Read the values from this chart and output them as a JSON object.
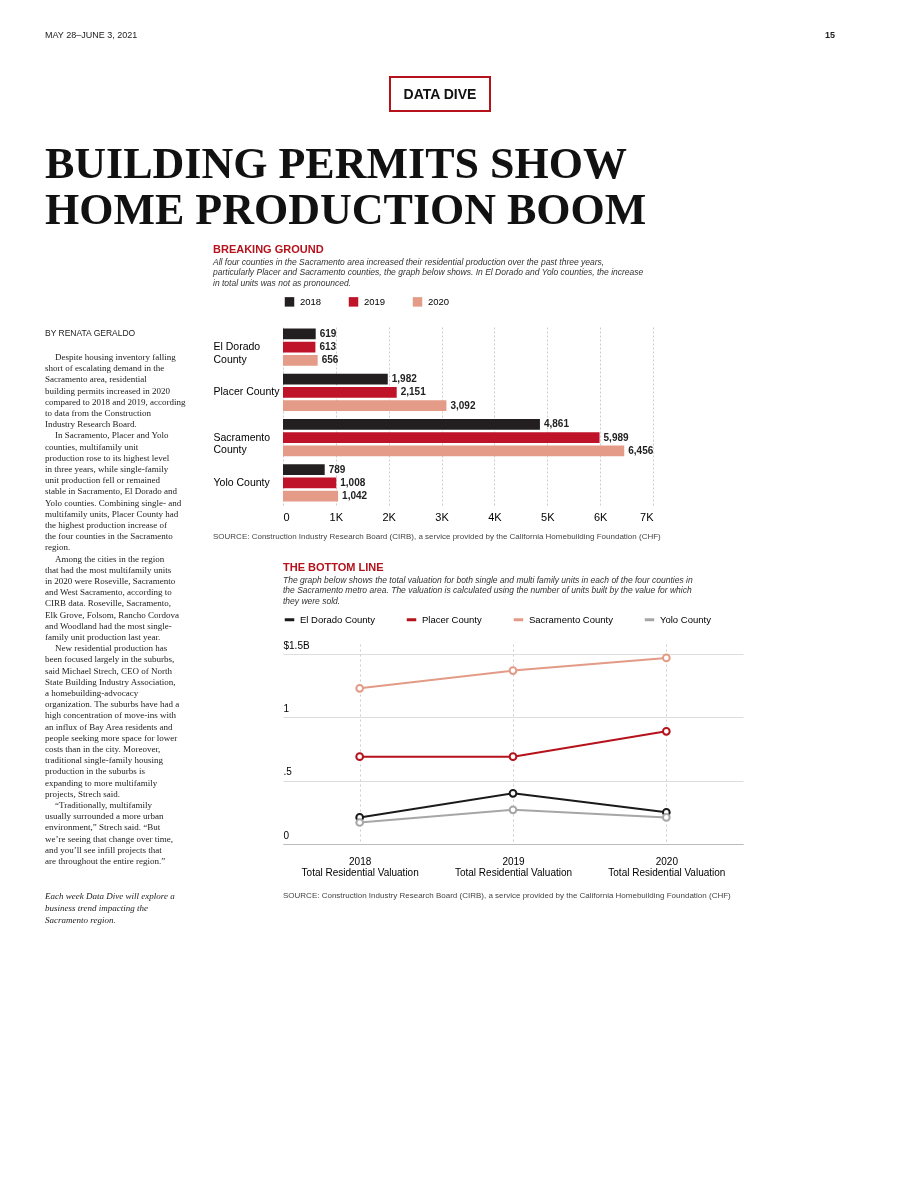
{
  "chart_data": [
    {
      "type": "bar",
      "orientation": "horizontal",
      "title": "BREAKING GROUND",
      "subtitle": "All four counties in the Sacramento area increased their residential production over the past three years, particularly Placer and Sacramento counties, the graph below shows. In El Dorado and Yolo counties, the increase in total units was not as pronounced.",
      "categories": [
        "El Dorado County",
        "Placer County",
        "Sacramento County",
        "Yolo County"
      ],
      "series": [
        {
          "name": "2018",
          "color": "#231f20",
          "values": [
            619,
            1982,
            4861,
            789
          ],
          "value_labels": [
            "619",
            "1,982",
            "4,861",
            "789"
          ]
        },
        {
          "name": "2019",
          "color": "#bf1329",
          "values": [
            613,
            2151,
            5989,
            1008
          ],
          "value_labels": [
            "613",
            "2,151",
            "5,989",
            "1,008"
          ]
        },
        {
          "name": "2020",
          "color": "#e49b88",
          "values": [
            656,
            3092,
            6456,
            1042
          ],
          "value_labels": [
            "656",
            "3,092",
            "6,456",
            "1,042"
          ]
        }
      ],
      "xlim": [
        0,
        7000
      ],
      "xticks": [
        0,
        {
          "value": 1000,
          "label": "1K"
        },
        {
          "value": 2000,
          "label": "2K"
        },
        {
          "value": 3000,
          "label": "3K"
        },
        {
          "value": 4000,
          "label": "4K"
        },
        {
          "value": 5000,
          "label": "5K"
        },
        {
          "value": 6000,
          "label": "6K"
        },
        {
          "value": 7000,
          "label": "7K"
        }
      ],
      "grid": "x",
      "legend": "top left",
      "annotations": [
        "MAY 28–JUNE 3, 2021",
        "15",
        "DATA DIVE",
        "BUILDING PERMITS SHOW HOME PRODUCTION BOOM",
        "BY RENATA GERALDO",
        "Despite housing inventory falling short of escalating demand in the Sacramento area, residential building permits increased in 2020 compared to 2018 and 2019, according to data from the Construction Industry Research Board.",
        "In Sacramento, Placer and Yolo counties, multifamily unit production rose to its highest level in three years, while single-family unit production fell or remained stable in Sacramento, El Dorado and Yolo counties. Combining single- and multifamily units, Placer County had the highest production increase of the four counties in the Sacramento region.",
        "Among the cities in the region that had the most multifamily units in 2020 were Roseville, Sacramento and West Sacramento, according to CIRB data. Roseville, Sacramento, Elk Grove, Folsom, Rancho Cordova and Woodland had the most single-family unit production last year.",
        "New residential production has been focused largely in the suburbs, said Michael Strech, CEO of North State Building Industry Association, a homebuilding-advocacy organization. The suburbs have had a high concentration of move-ins with an influx of Bay Area residents and people seeking more space for lower costs than in the city. Moreover, traditional single-family housing production in the suburbs is expanding to more multifamily projects, Strech said.",
        "“Traditionally, multifamily usually surrounded a more urban environment,” Strech said. “But we’re seeing that change over time, and you’ll see infill projects that are throughout the entire region.”",
        "Each week Data Dive will explore a business trend impacting the Sacramento region.",
        "SOURCE: Construction Industry Research Board (CIRB), a service provided by the California Homebuilding Foundation (CHF)"
      ]
    },
    {
      "type": "line",
      "title": "THE BOTTOM LINE",
      "subtitle": "The graph below shows the total valuation for both single and multi family units in each of the four counties in the Sacramento metro area. The valuation is calculated using the number of units built by the value for which they were sold.",
      "categories": [
        "2018 Total Residential Valuation",
        "2019 Total Residential Valuation",
        "2020 Total Residential Valuation"
      ],
      "series": [
        {
          "name": "El Dorado County",
          "color": "#1a1a1a",
          "values": [
            0.21,
            0.4,
            0.25
          ]
        },
        {
          "name": "Placer County",
          "color": "#b5121b",
          "values": [
            0.69,
            0.69,
            0.89
          ]
        },
        {
          "name": "Sacramento County",
          "color": "#e39a86",
          "values": [
            1.23,
            1.37,
            1.47
          ]
        },
        {
          "name": "Yolo County",
          "color": "#a6a6a6",
          "values": [
            0.17,
            0.27,
            0.21
          ]
        }
      ],
      "ylim": [
        0,
        1.58
      ],
      "yticks": [
        0,
        {
          "value": 0.5,
          "label": ".5"
        },
        1,
        {
          "value": 1.5,
          "label": "$1.5B"
        }
      ],
      "grid": true,
      "legend": "top left",
      "marker": "circle",
      "line_style": "solid",
      "annotations": [
        "SOURCE: Construction Industry Research Board (CIRB), a service provided by the California Homebuilding Foundation (CHF)"
      ]
    }
  ]
}
